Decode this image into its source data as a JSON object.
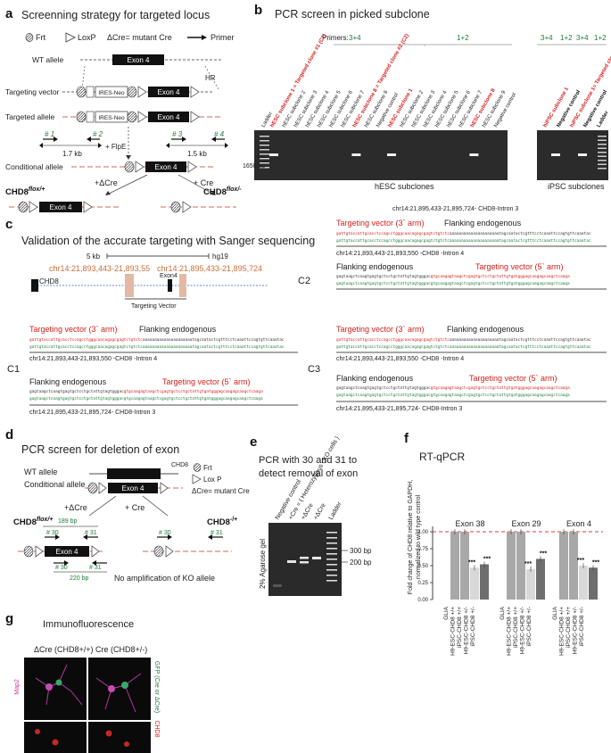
{
  "panels": {
    "a": {
      "label": "a",
      "title": "Screenning  strategy for targeted locus",
      "legend": {
        "frt": "Frt",
        "loxp": "LoxP",
        "dcre": "ΔCre= mutant Cre",
        "primer": "Primer"
      },
      "rows": {
        "wt": "WT allele",
        "tv": "Targeting vector",
        "ta": "Targeted allele",
        "ca": "Conditional allele"
      },
      "exon": "Exon 4",
      "neo": "IRES-Neo",
      "hr": "HR",
      "primers": [
        "# 1",
        "# 2",
        "# 3",
        "# 4"
      ],
      "dist_left": "1.7 kb",
      "dist_right": "1.5 kb",
      "flpe": "+ FlpE",
      "dcre": "+ΔCre",
      "cre": "+ Cre",
      "flox_plus": "CHD8",
      "flox_plus_sup": "flox/+",
      "flox_minus": "CHD8",
      "flox_minus_sup": "flox/-"
    },
    "b": {
      "label": "b",
      "title": "PCR screen  in picked subclone",
      "primers_label": "Primers:",
      "primer_groups": [
        "3+4",
        "1+2",
        "3+4",
        "1+2",
        "3+4",
        "1+2"
      ],
      "ladder_left": "Ladder",
      "lanes_hesc": [
        {
          "text": "hESC subclone 1 = Targeted clone #1 (C1)",
          "color": "red"
        },
        {
          "text": "hESC subclone 2",
          "color": "black"
        },
        {
          "text": "hESC subclone 3",
          "color": "black"
        },
        {
          "text": "hESC subclone 4",
          "color": "black"
        },
        {
          "text": "hESC subclone 5",
          "color": "black"
        },
        {
          "text": "hESC subclone 6",
          "color": "black"
        },
        {
          "text": "hESC subclone 7",
          "color": "black"
        },
        {
          "text": "hESC subclone 8 = Targeted clone #2 (C2)",
          "color": "red"
        },
        {
          "text": "hESC subclone 9",
          "color": "black"
        },
        {
          "text": "Negative control",
          "color": "black"
        },
        {
          "text": "hESC subclone 1",
          "color": "red"
        },
        {
          "text": "hESC subclone 2",
          "color": "black"
        },
        {
          "text": "hESC subclone 3",
          "color": "black"
        },
        {
          "text": "hESC subclone 4",
          "color": "black"
        },
        {
          "text": "hESC subclone 5",
          "color": "black"
        },
        {
          "text": "hESC subclone 6",
          "color": "black"
        },
        {
          "text": "hESC subclone 7",
          "color": "black"
        },
        {
          "text": "hESC subclone 8",
          "color": "red"
        },
        {
          "text": "hESC subclone 9",
          "color": "black"
        },
        {
          "text": "Negative control",
          "color": "black"
        }
      ],
      "lanes_ipsc": [
        {
          "text": "hiPSC subclone 1",
          "color": "red"
        },
        {
          "text": "Negative control",
          "color": "black"
        },
        {
          "text": "hiPSC subclone 1= Targeted clone #3 (C3)",
          "color": "red"
        },
        {
          "text": "Negative control",
          "color": "black"
        },
        {
          "text": "Ladder",
          "color": "black"
        }
      ],
      "bp_marker": "1650 bp",
      "caption_hesc": "hESC  subclones",
      "caption_ipsc": "iPSC  subclones"
    },
    "c": {
      "label": "c",
      "title": "Validation of the accurate targeting with Sanger sequencing",
      "scale": "5 kb",
      "genome": "hg19",
      "coord1": "chr14:21,893,443-21,893,55",
      "coord2": "chr14:21,895,433-21,895,724",
      "gene": "CHD8",
      "exon": "Exon4",
      "tv": "Targeting Vector",
      "top_coord": "chr14:21,895,433-21,895,724- CHD8-Intron 3",
      "tv3": "Targeting vector (3` arm)",
      "tv5": "Targeting vector (5` arm)",
      "flank": "Flanking endogenous",
      "intron4": "chr14:21,893,443-21,893,550 -CHD8 -Intron 4",
      "intron3": "chr14:21,895,433-21,895,724- CHD8-Intron 3",
      "seq3_red": "gattgtaccattgcacctccagcctgggcaacagagcgagtctgtctc",
      "seq3_black": "aaaaaaaaaaaaaaaaaaaaatagcaatactcgtttcctcaaattccagtgttcaaatac",
      "seq3_green": "gattgtaccattgcacctccagcctgggcaacagagcgagtctgtctcaaaaaaaaaaaaaaaaaaaaatagcaatactcgtttcctcaaattccagtgttcaaatac",
      "seq5_black": "gagtaagctcaagtgagtgctcctgctattgtagtgggac",
      "seq5_red": "gtgcaagagtaagctcgagtgctcctgctattgtgatgggagcaagagcaagctcaaga",
      "seq5_green": "gagtaagctcaagtgagtgctcctgctattgtagtgggacgtgcaagagtaagctcgagtgctcctgctattgtgatgggagcaagagcaagctcaaga",
      "c1": "C1",
      "c2": "C2",
      "c3": "C3"
    },
    "d": {
      "label": "d",
      "title": "PCR screen for deletion of exon",
      "wt": "WT allele",
      "cond": "Conditional allele",
      "chd8": "CHD8",
      "exon": "Exon 4",
      "frt": "Frt",
      "loxp": "Lox P",
      "dcre_def": "ΔCre= mutant Cre",
      "dcre": "+ΔCre",
      "cre": "+ Cre",
      "left_geno": "CHD8",
      "left_sup": "flox/+",
      "right_geno": "CHD8",
      "right_sup": "-/+",
      "p30": "# 30",
      "p31": "# 31",
      "bp189": "189 bp",
      "bp220": "220 bp",
      "no_amp": "No amplification of KO allele"
    },
    "e": {
      "label": "e",
      "title_lines": [
        "PCR with 30 and 31 to",
        "detect removal of exon"
      ],
      "lanes": [
        "Negative control",
        "+Cre = ( Heterozygous cKO cells )",
        "+ΔCre",
        "+ΔCre",
        "Ladder"
      ],
      "gel": "2% Agarose gel",
      "bp300": "300 bp",
      "bp200": "200 bp"
    },
    "f": {
      "label": "f",
      "title": "RT-qPCR",
      "ylabel_lines": [
        "Fold change of CHD8 relative to GAPDH,",
        "normalized to wild type control"
      ],
      "yticks": [
        "0.00",
        "0.25",
        "0.50",
        "0.75",
        "1.00"
      ],
      "groups": [
        "Exon 38",
        "Exon 29",
        "Exon 4"
      ],
      "xlabels": [
        "GLIA",
        "H9-ESC-CHD8 +/+",
        "iPSC-CHD8 +/+",
        "H9-ESC-CHD8 +/-",
        "iPSC-CHD8 +/-"
      ],
      "sig": "***",
      "colors": {
        "ref": "#e23b3b",
        "bar_light": "#a8a8a8",
        "bar_pale": "#d8d8d8",
        "bar_dark": "#6e6e6e"
      }
    },
    "g": {
      "label": "g",
      "title": "Immunofluorescence",
      "left_col": "ΔCre (CHD8+/+)",
      "right_col": "Cre (CHD8+/-)",
      "map2": "Map2",
      "gfp": "GFP (Cre or ΔCre)",
      "chd8": "CHD8"
    }
  },
  "chart_data": {
    "type": "bar",
    "title": "RT-qPCR",
    "ylabel": "Fold change of CHD8 relative to GAPDH, normalized to wild type control",
    "ylim": [
      0,
      1.0
    ],
    "reference_line": 1.0,
    "categories": [
      "Exon 38",
      "Exon 29",
      "Exon 4"
    ],
    "series": [
      {
        "values": [
          1.0,
          1.0,
          1.0
        ]
      },
      {
        "values": [
          1.0,
          1.0,
          1.0
        ]
      },
      {
        "values": [
          0.47,
          0.45,
          0.5
        ]
      },
      {
        "values": [
          0.52,
          0.6,
          0.47
        ]
      }
    ]
  }
}
